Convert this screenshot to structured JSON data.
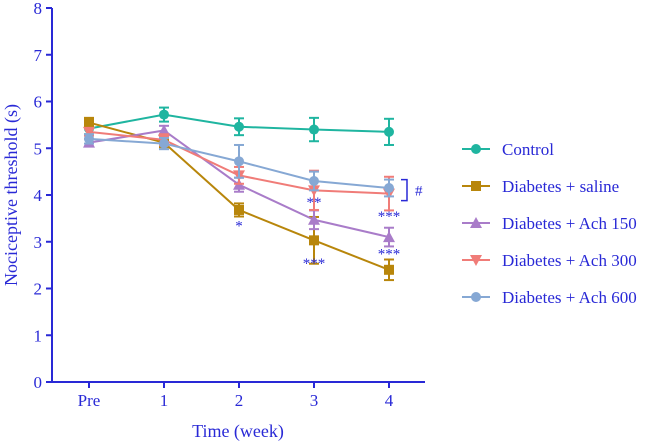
{
  "chart_data": {
    "type": "line",
    "title": "",
    "xlabel": "Time (week)",
    "ylabel": "Nociceptive threshold (s)",
    "categories": [
      "Pre",
      "1",
      "2",
      "3",
      "4"
    ],
    "ylim": [
      0,
      8
    ],
    "yticks": [
      "0",
      "1",
      "2",
      "3",
      "4",
      "5",
      "6",
      "7",
      "8"
    ],
    "legend_position": "right",
    "series": [
      {
        "name": "Control",
        "marker": "circle",
        "color": "#1fb5a0",
        "values": [
          5.42,
          5.72,
          5.46,
          5.4,
          5.35
        ],
        "errors": [
          0.12,
          0.15,
          0.18,
          0.25,
          0.28
        ]
      },
      {
        "name": "Diabetes + saline",
        "marker": "square",
        "color": "#b8860b",
        "values": [
          5.55,
          5.12,
          3.68,
          3.03,
          2.4
        ],
        "errors": [
          0.1,
          0.1,
          0.14,
          0.5,
          0.22
        ]
      },
      {
        "name": "Diabetes + Ach 150",
        "marker": "triangle-up",
        "color": "#a97cc9",
        "values": [
          5.12,
          5.38,
          4.22,
          3.47,
          3.1
        ],
        "errors": [
          0.08,
          0.1,
          0.15,
          0.2,
          0.2
        ]
      },
      {
        "name": "Diabetes + Ach 300",
        "marker": "triangle-down",
        "color": "#f07c78",
        "values": [
          5.35,
          5.18,
          4.42,
          4.1,
          4.03
        ],
        "errors": [
          0.08,
          0.12,
          0.18,
          0.42,
          0.36
        ]
      },
      {
        "name": "Diabetes + Ach 600",
        "marker": "circle",
        "color": "#86a8d4",
        "values": [
          5.2,
          5.1,
          4.72,
          4.3,
          4.15
        ],
        "errors": [
          0.1,
          0.12,
          0.35,
          0.2,
          0.18
        ]
      }
    ],
    "annotations": [
      {
        "text": "*",
        "x": "2",
        "y": 3.35
      },
      {
        "text": "**",
        "x": "3",
        "y": 3.85
      },
      {
        "text": "***",
        "x": "3",
        "y": 2.55
      },
      {
        "text": "***",
        "x": "4",
        "y": 3.55
      },
      {
        "text": "***",
        "x": "4",
        "y": 2.75
      },
      {
        "text": "#",
        "x": "4",
        "y": 4.1,
        "note": "bracket"
      }
    ]
  }
}
